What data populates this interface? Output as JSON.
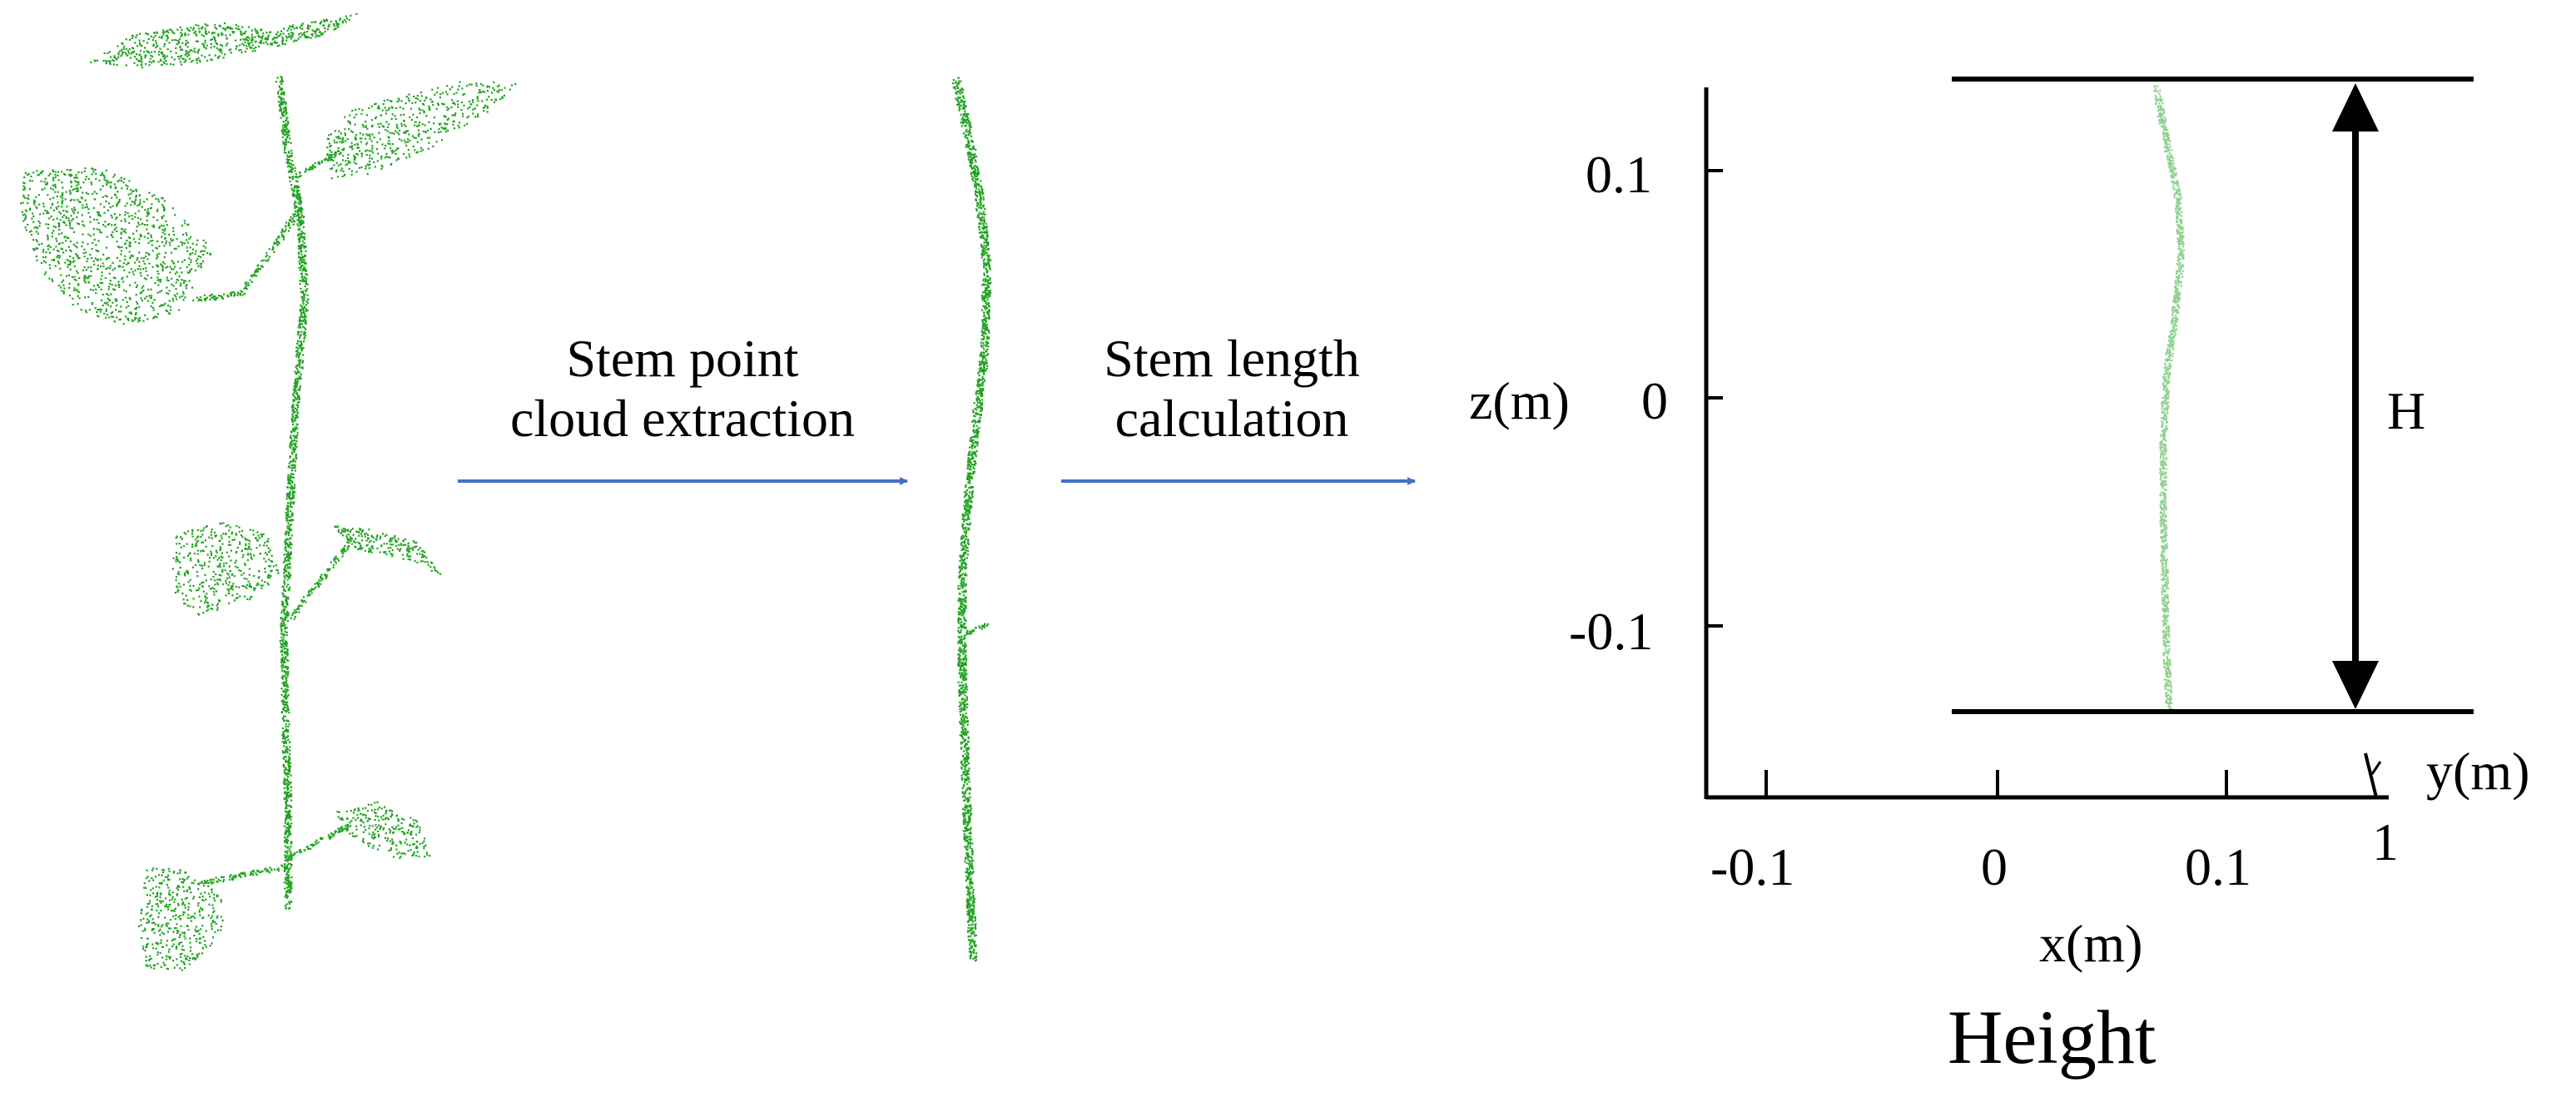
{
  "figure": {
    "steps": [
      {
        "line1": "Stem point",
        "line2": "cloud extraction"
      },
      {
        "line1": "Stem length",
        "line2": "calculation"
      }
    ],
    "plot": {
      "z_axis_title": "z(m)",
      "z_ticks": [
        "0.1",
        "0",
        "-0.1"
      ],
      "x_axis_title": "x(m)",
      "x_ticks": [
        "-0.1",
        "0",
        "0.1"
      ],
      "y_axis_title": "y(m)",
      "y_tick": "1",
      "height_marker": "H"
    },
    "panel_title": "Height"
  },
  "colors": {
    "point_cloud": "#22a322",
    "stem_light": "#8fd18f",
    "arrow": "#4472c4",
    "line": "#000000"
  }
}
